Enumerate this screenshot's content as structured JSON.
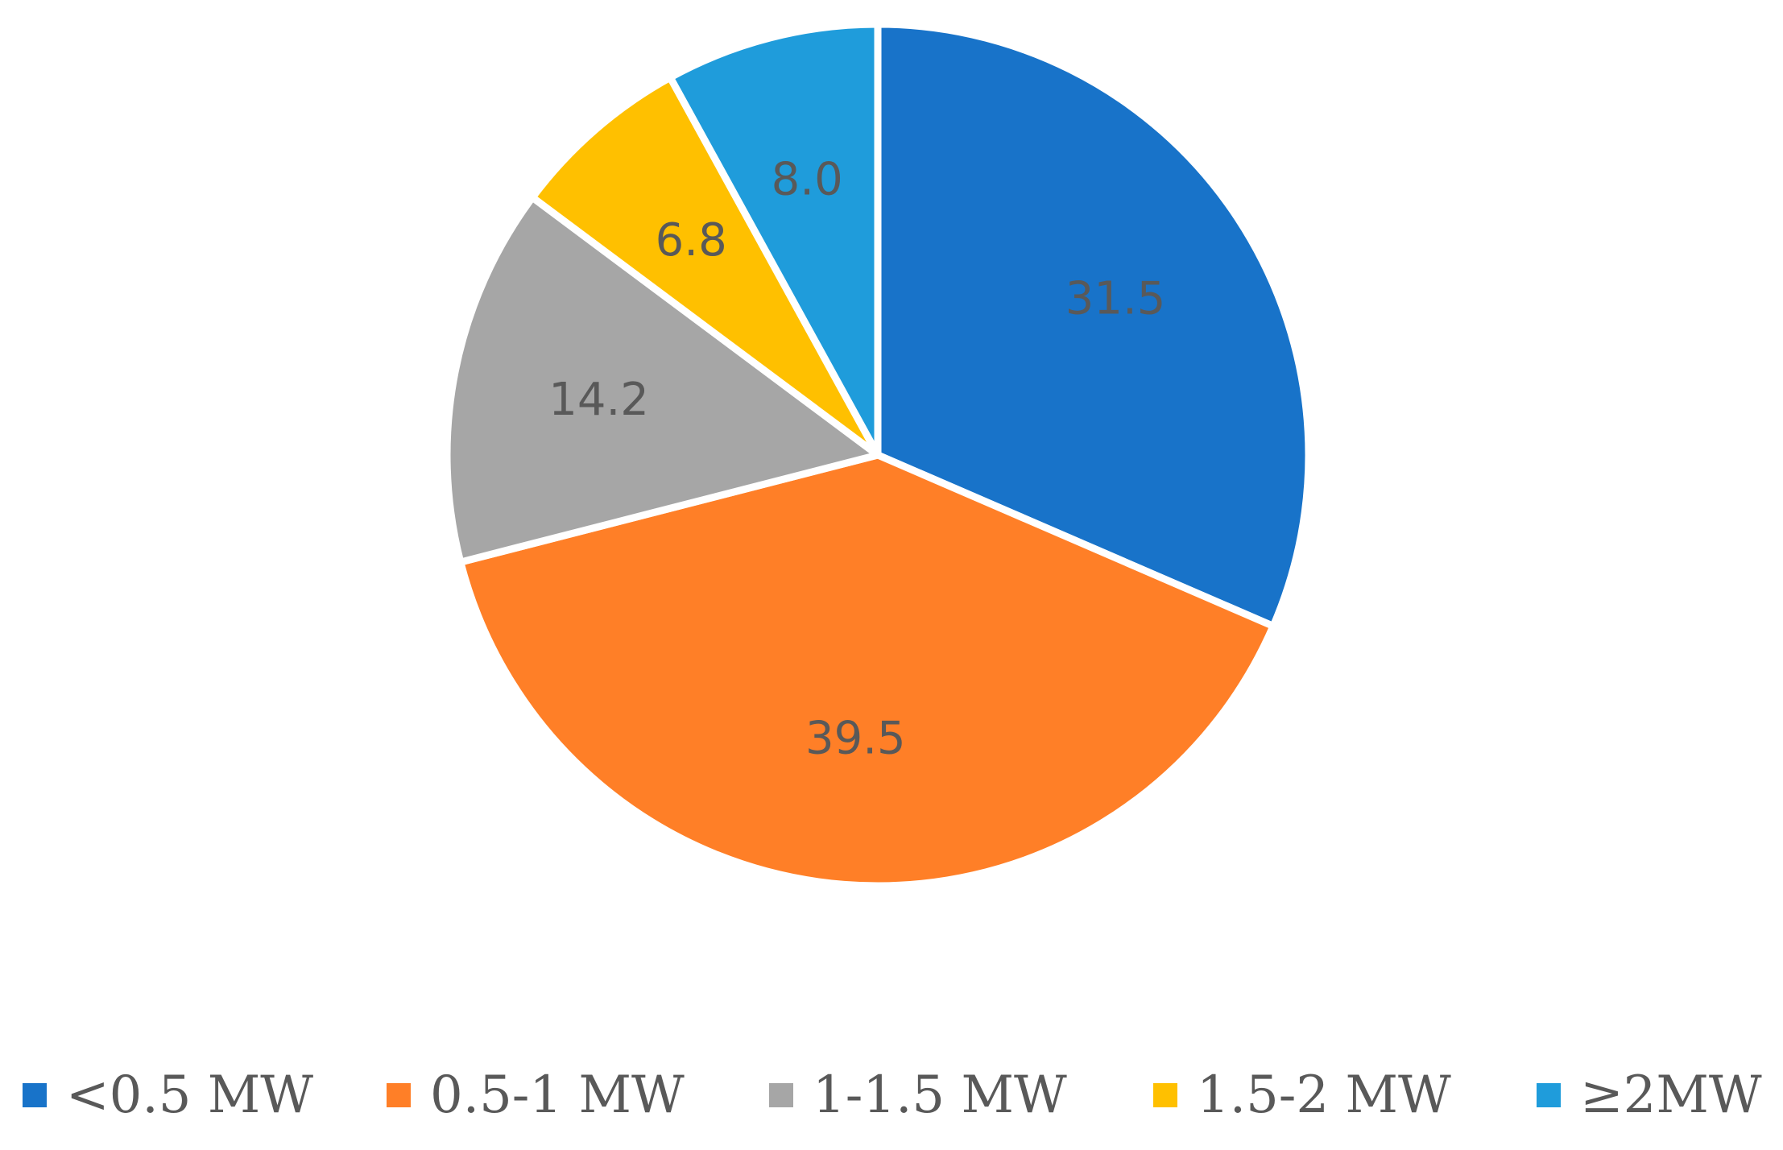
{
  "chart_data": {
    "type": "pie",
    "categories": [
      "<0.5 MW",
      "0.5-1 MW",
      "1-1.5 MW",
      "1.5-2 MW",
      "≥2MW"
    ],
    "values": [
      31.5,
      39.5,
      14.2,
      6.8,
      8.0
    ],
    "value_labels": [
      "31.5",
      "39.5",
      "14.2",
      "6.8",
      "8.0"
    ],
    "colors": [
      "#1873C9",
      "#FF7F27",
      "#A6A6A6",
      "#FFC000",
      "#1F9CDB"
    ],
    "start_angle_deg": 0,
    "direction": "clockwise",
    "legend_position": "bottom",
    "title": ""
  }
}
